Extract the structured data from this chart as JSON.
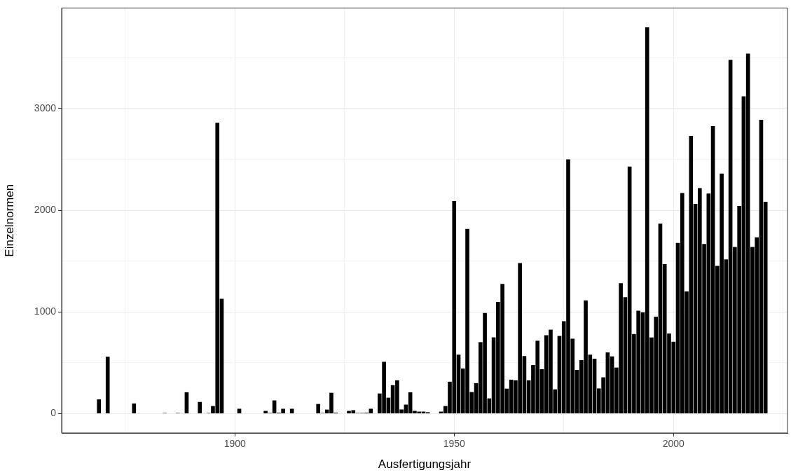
{
  "chart_data": {
    "type": "bar",
    "xlabel": "Ausfertigungsjahr",
    "ylabel": "Einzelnormen",
    "color": "#000000",
    "x": [
      1869,
      1871,
      1877,
      1884,
      1886,
      1887,
      1889,
      1892,
      1894,
      1895,
      1896,
      1897,
      1898,
      1899,
      1901,
      1903,
      1906,
      1907,
      1908,
      1909,
      1910,
      1911,
      1913,
      1919,
      1920,
      1921,
      1922,
      1923,
      1924,
      1925,
      1926,
      1927,
      1928,
      1929,
      1930,
      1931,
      1933,
      1934,
      1935,
      1936,
      1937,
      1938,
      1939,
      1940,
      1941,
      1942,
      1943,
      1944,
      1947,
      1948,
      1949,
      1950,
      1951,
      1952,
      1953,
      1954,
      1955,
      1956,
      1957,
      1958,
      1959,
      1960,
      1961,
      1962,
      1963,
      1964,
      1965,
      1966,
      1967,
      1968,
      1969,
      1970,
      1971,
      1972,
      1973,
      1974,
      1975,
      1976,
      1977,
      1978,
      1979,
      1980,
      1981,
      1982,
      1983,
      1984,
      1985,
      1986,
      1987,
      1988,
      1989,
      1990,
      1991,
      1992,
      1993,
      1994,
      1995,
      1996,
      1997,
      1998,
      1999,
      2000,
      2001,
      2002,
      2003,
      2004,
      2005,
      2006,
      2007,
      2008,
      2009,
      2010,
      2011,
      2012,
      2013,
      2014,
      2015,
      2016,
      2017,
      2018,
      2019,
      2020,
      2021
    ],
    "values": [
      140,
      560,
      100,
      7,
      null,
      7,
      210,
      115,
      7,
      75,
      2860,
      1130,
      null,
      null,
      48,
      null,
      null,
      27,
      7,
      130,
      10,
      48,
      48,
      95,
      7,
      40,
      205,
      10,
      null,
      null,
      27,
      34,
      7,
      7,
      10,
      48,
      198,
      510,
      157,
      280,
      328,
      41,
      89,
      210,
      27,
      20,
      20,
      14,
      20,
      75,
      314,
      2090,
      580,
      444,
      1816,
      212,
      300,
      703,
      990,
      150,
      750,
      1099,
      1276,
      246,
      334,
      328,
      1481,
      566,
      328,
      478,
      717,
      437,
      771,
      826,
      239,
      764,
      908,
      2500,
      737,
      430,
      526,
      1113,
      580,
      540,
      248,
      357,
      602,
      563,
      453,
      1283,
      1144,
      2430,
      783,
      1013,
      997,
      3799,
      749,
      953,
      1869,
      1471,
      788,
      707,
      1678,
      2170,
      1202,
      2731,
      2063,
      2217,
      1668,
      2165,
      2827,
      1453,
      2361,
      1516,
      3479,
      1639,
      2042,
      3121,
      3540,
      1639,
      1733,
      2890,
      2084
    ],
    "xlim": [
      1860.5,
      2026
    ],
    "xticks": [
      {
        "value": 1875,
        "label": null
      },
      1900,
      {
        "value": 1925,
        "label": null
      },
      1950,
      {
        "value": 1975,
        "label": null
      },
      2000,
      {
        "value": 2025,
        "label": null
      }
    ],
    "ylim": [
      -190,
      3989
    ],
    "yticks": [
      0,
      {
        "value": 500,
        "label": null
      },
      1000,
      {
        "value": 1500,
        "label": null
      },
      2000,
      {
        "value": 2500,
        "label": null
      },
      3000,
      {
        "value": 3500,
        "label": null
      }
    ],
    "grid": true,
    "legend": false
  }
}
